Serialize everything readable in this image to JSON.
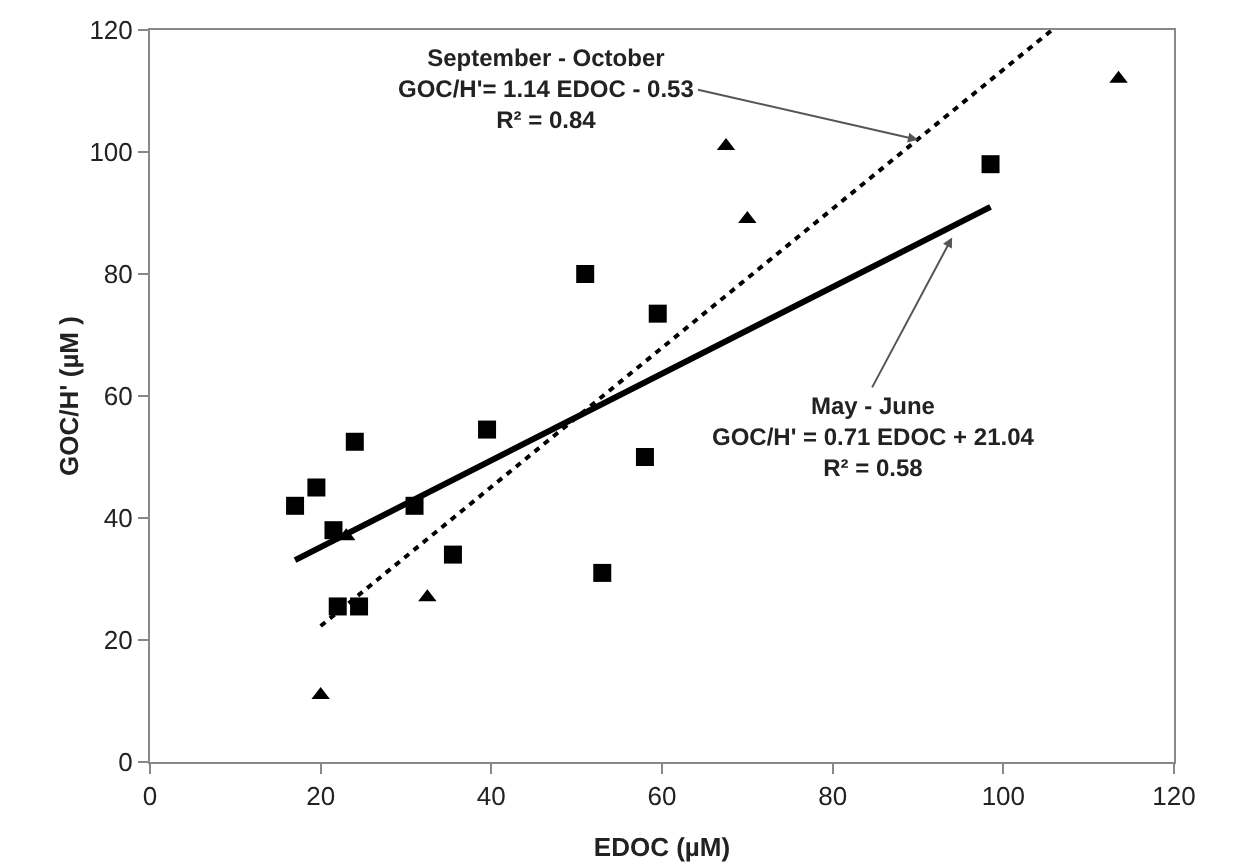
{
  "chart_data": {
    "type": "scatter",
    "xlabel": "EDOC (µM)",
    "ylabel": "GOC/H' (µM )",
    "xlim": [
      0,
      120
    ],
    "xticks": [
      0,
      20,
      40,
      60,
      80,
      100,
      120
    ],
    "ylim": [
      0,
      120
    ],
    "yticks": [
      0,
      20,
      40,
      60,
      80,
      100,
      120
    ],
    "grid": false,
    "series": [
      {
        "type": "scatter",
        "marker": "square",
        "color": "#000000",
        "x": [
          17,
          19.5,
          21.5,
          22,
          24,
          24.5,
          31,
          35.5,
          39.5,
          51,
          53,
          58,
          59.5,
          98.5
        ],
        "values": [
          42,
          45,
          38,
          25.5,
          52.5,
          25.5,
          42,
          34,
          54.5,
          80,
          31,
          50,
          73.5,
          98
        ]
      },
      {
        "type": "scatter",
        "marker": "triangle",
        "color": "#000000",
        "x": [
          20,
          23,
          32.5,
          67.5,
          70,
          113.5
        ],
        "values": [
          11,
          37,
          27,
          101,
          89,
          112
        ]
      },
      {
        "type": "line",
        "line_style": "solid",
        "color": "#000000",
        "x": [
          17,
          98.5
        ],
        "values": [
          33.1,
          91
        ]
      },
      {
        "type": "line",
        "line_style": "dotted",
        "color": "#000000",
        "x": [
          20,
          105.7
        ],
        "values": [
          22.3,
          120
        ]
      }
    ],
    "annotations": [
      {
        "text": "September - October\nGOC/H'= 1.14 EDOC - 0.53\nR² = 0.84",
        "x": 90,
        "y": 102
      },
      {
        "text": "May - June\nGOC/H' = 0.71 EDOC + 21.04\nR² = 0.58",
        "x": 94,
        "y": 86
      }
    ]
  }
}
